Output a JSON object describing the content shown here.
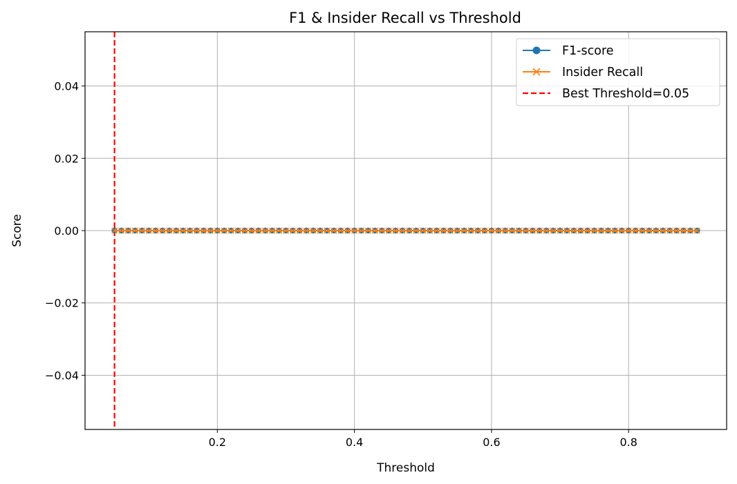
{
  "chart_data": {
    "type": "line",
    "title": "F1 & Insider Recall vs Threshold",
    "xlabel": "Threshold",
    "ylabel": "Score",
    "xlim": [
      0.007,
      0.943
    ],
    "ylim": [
      -0.055,
      0.055
    ],
    "xticks": [
      0.2,
      0.4,
      0.6,
      0.8
    ],
    "xtick_labels": [
      "0.2",
      "0.4",
      "0.6",
      "0.8"
    ],
    "yticks": [
      0.04,
      0.02,
      0.0,
      -0.02,
      -0.04
    ],
    "ytick_labels": [
      "0.04",
      "0.02",
      "0.00",
      "−0.02",
      "−0.04"
    ],
    "grid": true,
    "legend_position": "top-right",
    "x": {
      "start": 0.05,
      "stop": 0.9,
      "step": 0.01
    },
    "series": [
      {
        "name": "F1-score",
        "marker": "circle",
        "color": "#1f77b4",
        "constant_value": 0.0
      },
      {
        "name": "Insider Recall",
        "marker": "x",
        "color": "#ff7f0e",
        "constant_value": 0.0
      }
    ],
    "vline": {
      "x": 0.05,
      "label": "Best Threshold=0.05",
      "color": "#ff0000",
      "style": "dashed"
    }
  }
}
